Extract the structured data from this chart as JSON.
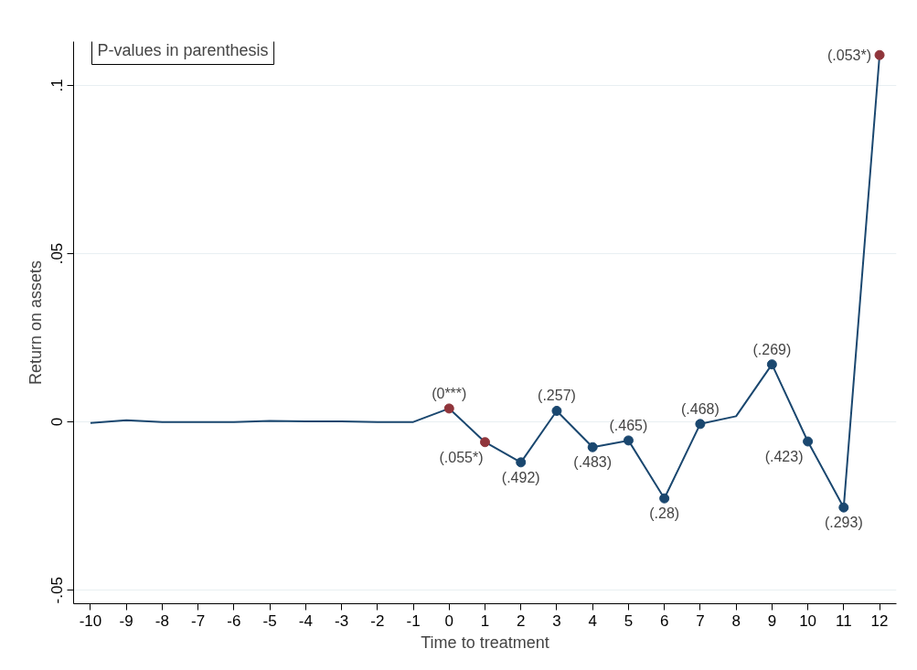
{
  "chart_data": {
    "type": "line",
    "xlabel": "Time to treatment",
    "ylabel": "Return on assets",
    "annotations": [
      "P-values in parenthesis",
      {
        "text": "(0***)",
        "x": 0,
        "y": 0.004
      },
      {
        "text": "(.055*)",
        "x": 1,
        "y": -0.006
      },
      {
        "text": "(.492)",
        "x": 2,
        "y": -0.012
      },
      {
        "text": "(.257)",
        "x": 3,
        "y": 0.0033
      },
      {
        "text": "(.483)",
        "x": 4,
        "y": -0.0075
      },
      {
        "text": "(.465)",
        "x": 5,
        "y": -0.0055
      },
      {
        "text": "(.28)",
        "x": 6,
        "y": -0.0227
      },
      {
        "text": "(.468)",
        "x": 7,
        "y": -0.0006
      },
      {
        "text": "(.269)",
        "x": 9,
        "y": 0.0171
      },
      {
        "text": "(.423)",
        "x": 10,
        "y": -0.0058
      },
      {
        "text": "(.293)",
        "x": 11,
        "y": -0.0254
      },
      {
        "text": "(.053*)",
        "x": 12,
        "y": 0.109
      }
    ],
    "x": [
      -10,
      -9,
      -8,
      -7,
      -6,
      -5,
      -4,
      -3,
      -2,
      -1,
      0,
      1,
      2,
      3,
      4,
      5,
      6,
      7,
      8,
      9,
      10,
      11,
      12
    ],
    "series": [
      {
        "color": "#1a476f",
        "marker": "none",
        "values": [
          -0.0003,
          0.0005,
          0,
          0,
          0,
          0.0003,
          0.0002,
          0.0002,
          0,
          0,
          0.004,
          -0.006,
          -0.012,
          0.0033,
          -0.0075,
          -0.0055,
          -0.0227,
          -0.0006,
          0.0017,
          0.0171,
          -0.0058,
          -0.0254,
          0.109
        ]
      },
      {
        "type": "scatter",
        "marker": "circle",
        "x": [
          0,
          1,
          2,
          3,
          4,
          5,
          6,
          7,
          9,
          10,
          11,
          12
        ],
        "values": [
          0.004,
          -0.006,
          -0.012,
          0.0033,
          -0.0075,
          -0.0055,
          -0.0227,
          -0.0006,
          0.0171,
          -0.0058,
          -0.0254,
          0.109
        ],
        "colors": [
          "#90353b",
          "#90353b",
          "#1a476f",
          "#1a476f",
          "#1a476f",
          "#1a476f",
          "#1a476f",
          "#1a476f",
          "#1a476f",
          "#1a476f",
          "#1a476f",
          "#90353b"
        ]
      }
    ],
    "xlim": [
      -10.47,
      12.47
    ],
    "ylim": [
      -0.054,
      0.113
    ],
    "xticks": [
      -10,
      -9,
      -8,
      -7,
      -6,
      -5,
      -4,
      -3,
      -2,
      -1,
      0,
      1,
      2,
      3,
      4,
      5,
      6,
      7,
      8,
      9,
      10,
      11,
      12
    ],
    "yticks": [
      {
        "value": -0.05,
        "label": "-.05"
      },
      {
        "value": 0,
        "label": "0"
      },
      {
        "value": 0.05,
        "label": ".05"
      },
      {
        "value": 0.1,
        "label": ".1"
      }
    ],
    "grid": "y"
  }
}
